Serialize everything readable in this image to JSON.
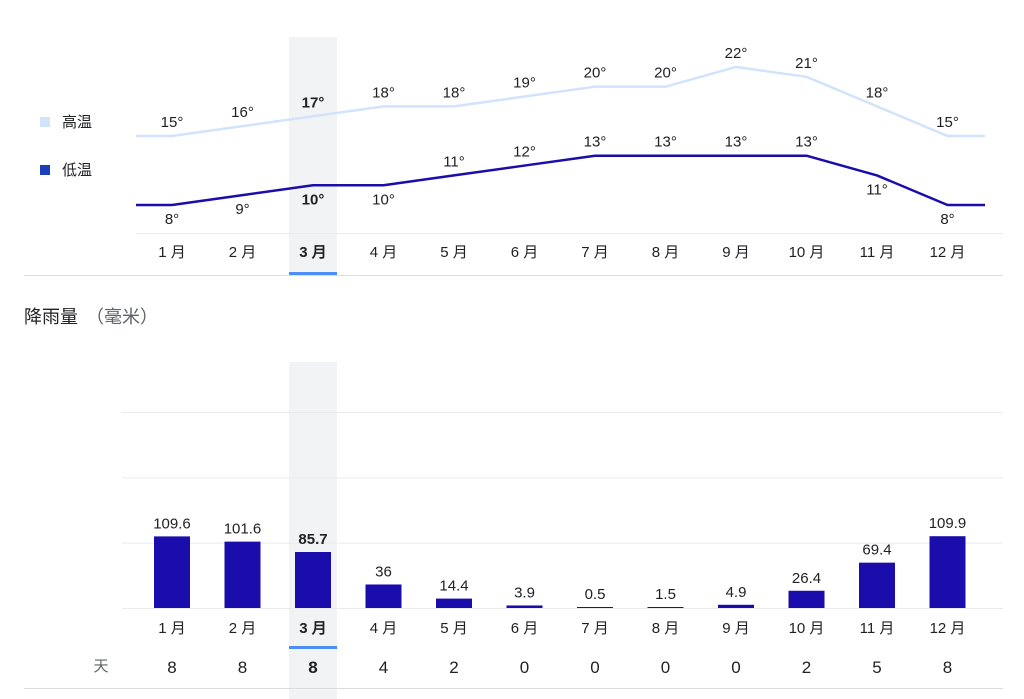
{
  "legend": {
    "high_label": "高温",
    "low_label": "低温",
    "high_color": "#d2e3fc",
    "low_color": "#1a0dab"
  },
  "precip_section": {
    "title": "降雨量",
    "unit": "（毫米）",
    "days_label": "天"
  },
  "selected_month_index": 2,
  "chart_data": [
    {
      "type": "line",
      "categories": [
        "1 月",
        "2 月",
        "3 月",
        "4 月",
        "5 月",
        "6 月",
        "7 月",
        "8 月",
        "9 月",
        "10 月",
        "11 月",
        "12 月"
      ],
      "series": [
        {
          "name": "高温",
          "values": [
            15,
            16,
            17,
            18,
            18,
            19,
            20,
            20,
            22,
            21,
            18,
            15
          ],
          "color": "#d2e3fc"
        },
        {
          "name": "低温",
          "values": [
            8,
            9,
            10,
            10,
            11,
            12,
            13,
            13,
            13,
            13,
            11,
            8
          ],
          "color": "#1a0dab"
        }
      ],
      "value_suffix": "°"
    },
    {
      "type": "bar",
      "categories": [
        "1 月",
        "2 月",
        "3 月",
        "4 月",
        "5 月",
        "6 月",
        "7 月",
        "8 月",
        "9 月",
        "10 月",
        "11 月",
        "12 月"
      ],
      "values": [
        109.6,
        101.6,
        85.7,
        36,
        14.4,
        3.9,
        0.5,
        1.5,
        4.9,
        26.4,
        69.4,
        109.9
      ],
      "value_labels": [
        "109.6",
        "101.6",
        "85.7",
        "36",
        "14.4",
        "3.9",
        "0.5",
        "1.5",
        "4.9",
        "26.4",
        "69.4",
        "109.9"
      ],
      "bar_color": "#1a0dab",
      "ylim": [
        0,
        300
      ],
      "rain_days": [
        8,
        8,
        8,
        4,
        2,
        0,
        0,
        0,
        0,
        2,
        5,
        8
      ]
    }
  ]
}
